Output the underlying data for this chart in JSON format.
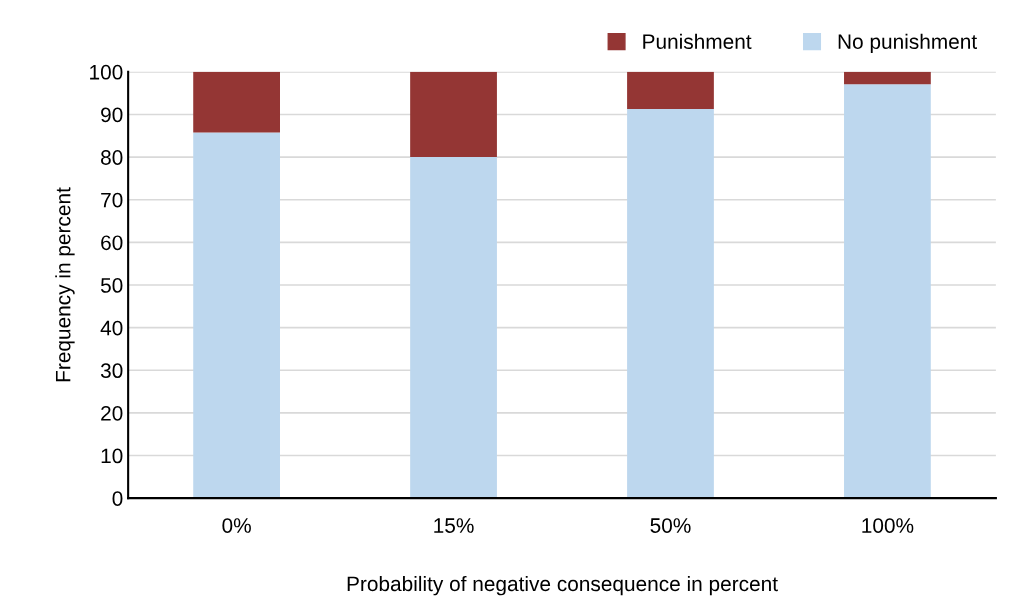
{
  "chart_data": {
    "type": "bar",
    "stacked": true,
    "xlabel": "Probability of negative consequence in percent",
    "ylabel": "Frequency in percent",
    "categories": [
      "0%",
      "15%",
      "50%",
      "100%"
    ],
    "series": [
      {
        "name": "No punishment",
        "color": "#bdd7ee",
        "values": [
          85.8,
          80.0,
          91.3,
          97.1
        ]
      },
      {
        "name": "Punishment",
        "color": "#943634",
        "values": [
          14.2,
          20.0,
          8.7,
          2.9
        ]
      }
    ],
    "ylim": [
      0,
      100
    ],
    "yticks": [
      0,
      10,
      20,
      30,
      40,
      50,
      60,
      70,
      80,
      90,
      100
    ],
    "grid": "y",
    "legend": "top right"
  }
}
